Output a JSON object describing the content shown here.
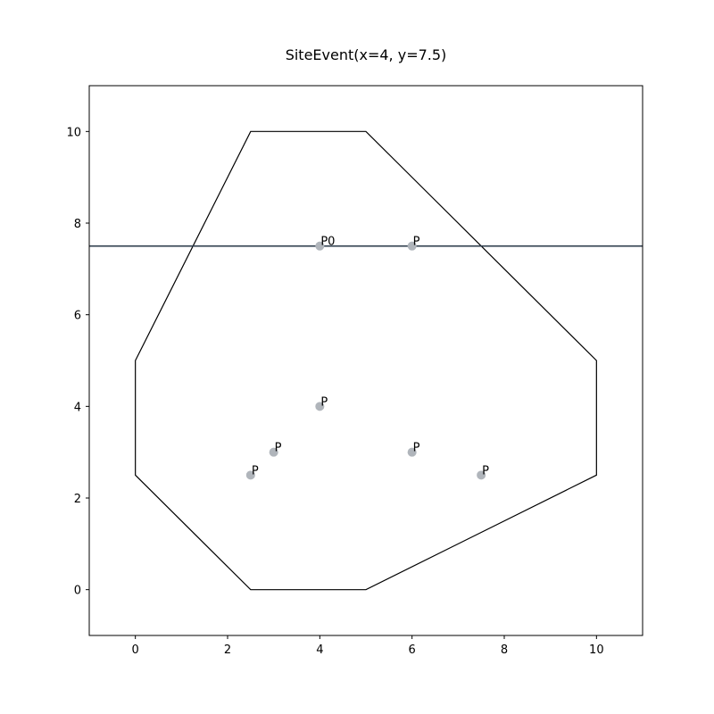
{
  "chart_data": {
    "type": "scatter",
    "title": "SiteEvent(x=4, y=7.5)",
    "xlabel": "",
    "ylabel": "",
    "xlim": [
      -1,
      11
    ],
    "ylim": [
      -1,
      11
    ],
    "xticks": [
      0,
      2,
      4,
      6,
      8,
      10
    ],
    "yticks": [
      0,
      2,
      4,
      6,
      8,
      10
    ],
    "grid": false,
    "points": [
      {
        "x": 4,
        "y": 7.5,
        "label": "P0"
      },
      {
        "x": 6,
        "y": 7.5,
        "label": "P"
      },
      {
        "x": 4,
        "y": 4,
        "label": "P"
      },
      {
        "x": 3,
        "y": 3,
        "label": "P"
      },
      {
        "x": 2.5,
        "y": 2.5,
        "label": "P"
      },
      {
        "x": 6,
        "y": 3,
        "label": "P"
      },
      {
        "x": 7.5,
        "y": 2.5,
        "label": "P"
      }
    ],
    "boundary_polygon": [
      [
        2.5,
        10
      ],
      [
        5,
        10
      ],
      [
        10,
        5
      ],
      [
        10,
        2.5
      ],
      [
        5,
        0
      ],
      [
        2.5,
        0
      ],
      [
        0,
        2.5
      ],
      [
        0,
        5
      ]
    ],
    "sweep_line_y": 7.5,
    "colors": {
      "points": "#b0b5bb",
      "boundary": "#000000",
      "sweep_line": "#2f3e4e"
    }
  }
}
